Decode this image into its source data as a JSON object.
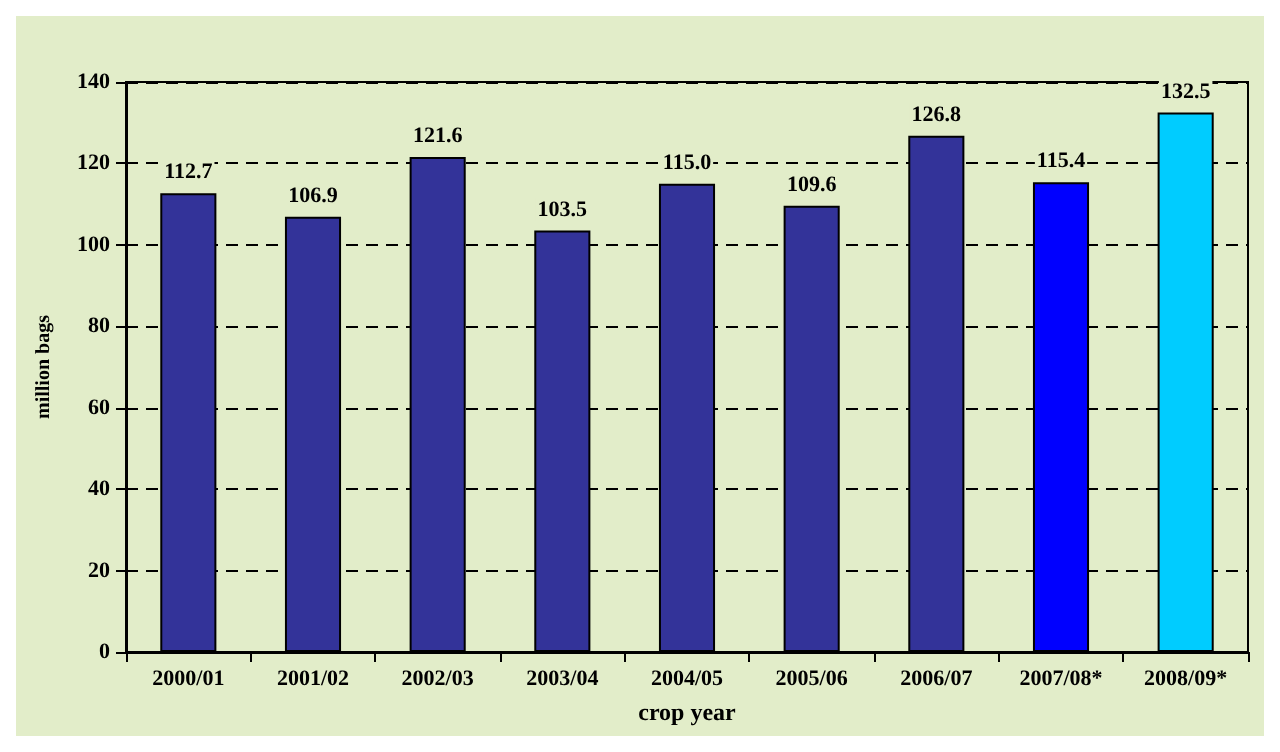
{
  "chart_data": {
    "type": "bar",
    "xlabel": "crop year",
    "ylabel": "million bags",
    "categories": [
      "2000/01",
      "2001/02",
      "2002/03",
      "2003/04",
      "2004/05",
      "2005/06",
      "2006/07",
      "2007/08*",
      "2008/09*"
    ],
    "values": [
      112.7,
      106.9,
      121.6,
      103.5,
      115.0,
      109.6,
      126.8,
      115.4,
      132.5
    ],
    "value_labels": [
      "112.7",
      "106.9",
      "121.6",
      "103.5",
      "115.0",
      "109.6",
      "126.8",
      "115.4",
      "132.5"
    ],
    "colors": [
      "#333399",
      "#333399",
      "#333399",
      "#333399",
      "#333399",
      "#333399",
      "#333399",
      "#0000ff",
      "#00ccff"
    ],
    "ylim": [
      0,
      140
    ],
    "yticks": [
      0,
      20,
      40,
      60,
      80,
      100,
      120,
      140
    ],
    "grid": "y"
  }
}
